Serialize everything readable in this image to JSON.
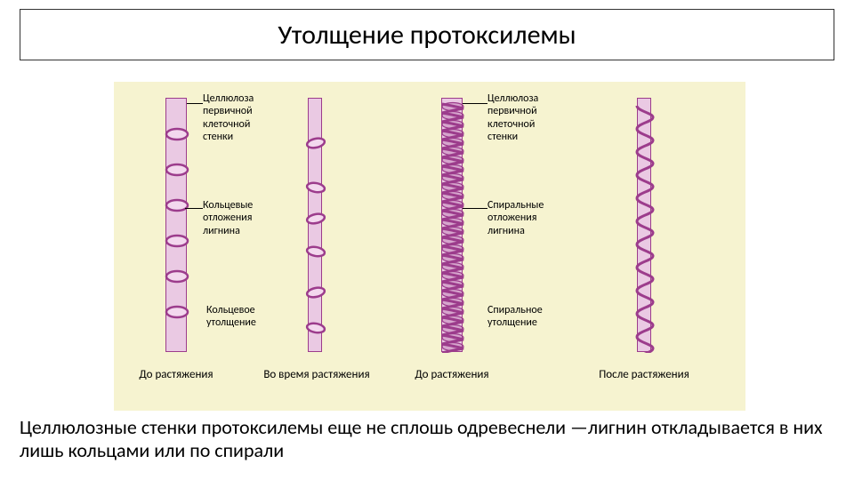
{
  "title": "Утолщение протоксилемы",
  "caption": "Целлюлозные стенки протоксилемы еще не сплошь одревеснели —лигнин откладывается в них лишь кольцами или по спирали",
  "diagram": {
    "bg": "#f6f3d0",
    "vessel_fill": "#eac9e3",
    "vessel_stroke": "#9c3c8c",
    "ring_fill": "#f3d8ee",
    "ring_stroke": "#9c3c8c",
    "labels": {
      "cellulose1": "Целлюлоза первичной клеточной стенки",
      "rings": "Кольцевые отложения лигнина",
      "ring_type": "Кольцевое утолщение",
      "cellulose2": "Целлюлоза первичной клеточной стенки",
      "spiral": "Спиральные отложения лигнина",
      "spiral_type": "Спиральное утолщение"
    },
    "subcaps": {
      "c1": "До растяжения",
      "c2": "Во время растяжения",
      "c3": "До растяжения",
      "c4": "После растяжения"
    },
    "vessel1_rings_y": [
      40,
      80,
      120,
      160,
      200,
      240
    ],
    "vessel2_rings_y": [
      50,
      100,
      135,
      172,
      218,
      258
    ],
    "label_fontsize": 12,
    "subcap_fontsize": 13
  }
}
